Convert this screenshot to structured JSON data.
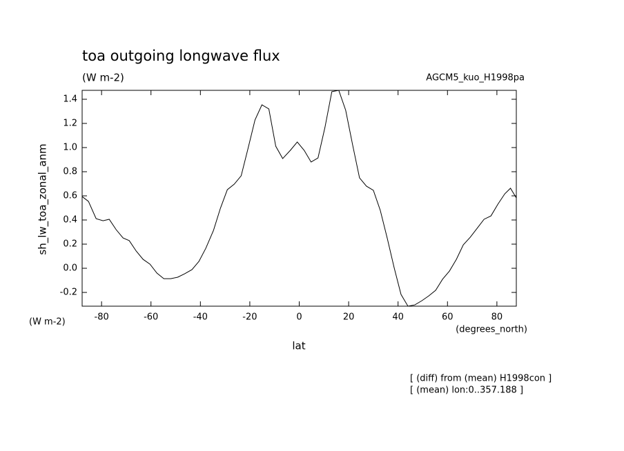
{
  "chart_data": {
    "type": "line",
    "title": "toa outgoing longwave flux",
    "subtitle": "(W m-2)",
    "model_label": "AGCM5_kuo_H1998pa",
    "y_label": "sh_lw_toa_zonal_anm",
    "y_unit": "(W m-2)",
    "x_label": "lat",
    "x_unit": "(degrees_north)",
    "notes": [
      "[ (diff) from (mean) H1998con ]",
      "[ (mean) lon:0..357.188 ]"
    ],
    "color": "#000000",
    "xlim": [
      -87.86,
      87.86
    ],
    "ylim": [
      -0.314,
      1.474
    ],
    "xticks": [
      -80,
      -60,
      -40,
      -20,
      0,
      20,
      40,
      60,
      80
    ],
    "yticks": [
      -0.2,
      {
        "value": 0,
        "label": "0.0"
      },
      0.2,
      0.4,
      0.6,
      0.8,
      {
        "value": 1,
        "label": "1.0"
      },
      1.2,
      1.4
    ],
    "x": [
      -87.86,
      -85.3,
      -82.2,
      -79.4,
      -76.9,
      -74.1,
      -71.3,
      -68.8,
      -66.0,
      -63.2,
      -60.4,
      -57.6,
      -54.8,
      -52.0,
      -49.2,
      -46.4,
      -43.4,
      -40.6,
      -37.8,
      -34.7,
      -31.9,
      -29.1,
      -26.3,
      -23.5,
      -20.7,
      -17.9,
      -15.1,
      -12.3,
      -9.5,
      -6.7,
      -3.6,
      -0.8,
      2.0,
      4.8,
      7.6,
      10.4,
      13.2,
      16.0,
      18.8,
      21.6,
      24.4,
      27.2,
      30.0,
      32.8,
      35.6,
      38.4,
      41.2,
      44.0,
      46.8,
      49.6,
      52.4,
      55.2,
      58.0,
      60.8,
      63.6,
      66.4,
      69.2,
      72.0,
      74.8,
      77.6,
      80.4,
      83.2,
      85.5,
      87.86
    ],
    "values": [
      0.594,
      0.554,
      0.411,
      0.394,
      0.406,
      0.32,
      0.251,
      0.229,
      0.143,
      0.074,
      0.034,
      -0.04,
      -0.086,
      -0.086,
      -0.074,
      -0.046,
      -0.011,
      0.057,
      0.166,
      0.314,
      0.497,
      0.651,
      0.697,
      0.766,
      0.994,
      1.229,
      1.354,
      1.32,
      1.011,
      0.909,
      0.977,
      1.046,
      0.977,
      0.88,
      0.914,
      1.166,
      1.463,
      1.474,
      1.309,
      1.023,
      0.749,
      0.68,
      0.646,
      0.48,
      0.251,
      0.006,
      -0.217,
      -0.314,
      -0.303,
      -0.269,
      -0.229,
      -0.183,
      -0.091,
      -0.023,
      0.074,
      0.194,
      0.257,
      0.331,
      0.406,
      0.434,
      0.531,
      0.617,
      0.663,
      0.583
    ]
  }
}
